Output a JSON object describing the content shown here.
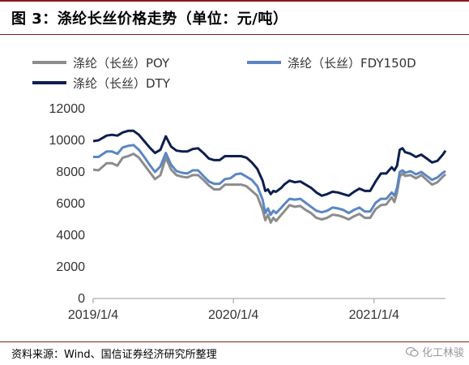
{
  "title": "图 3：涤纶长丝价格走势（单位：元/吨）",
  "source": "资料来源：Wind、国信证券经济研究所整理",
  "watermark": "化工林骏",
  "chart_data": {
    "type": "line",
    "x_ticks": [
      "2019/1/4",
      "2020/1/4",
      "2021/1/4"
    ],
    "y_ticks": [
      0,
      2000,
      4000,
      6000,
      8000,
      10000,
      12000
    ],
    "ylim": [
      0,
      12000
    ],
    "xlim": [
      "2019/1/4",
      "2021/7/9"
    ],
    "grid": false,
    "legend_position": "top",
    "series": [
      {
        "name": "涤纶（长丝）POY",
        "color": "#8c8c8c",
        "points": [
          [
            "2019-01-04",
            8150
          ],
          [
            "2019-01-18",
            8100
          ],
          [
            "2019-02-08",
            8550
          ],
          [
            "2019-02-22",
            8550
          ],
          [
            "2019-03-08",
            8400
          ],
          [
            "2019-03-22",
            8900
          ],
          [
            "2019-04-05",
            9000
          ],
          [
            "2019-04-19",
            9150
          ],
          [
            "2019-05-03",
            8900
          ],
          [
            "2019-05-17",
            8450
          ],
          [
            "2019-05-31",
            8000
          ],
          [
            "2019-06-14",
            7550
          ],
          [
            "2019-06-28",
            7800
          ],
          [
            "2019-07-12",
            8900
          ],
          [
            "2019-07-26",
            8150
          ],
          [
            "2019-08-09",
            7800
          ],
          [
            "2019-08-23",
            7700
          ],
          [
            "2019-09-06",
            7650
          ],
          [
            "2019-09-20",
            7800
          ],
          [
            "2019-10-04",
            7800
          ],
          [
            "2019-10-18",
            7500
          ],
          [
            "2019-11-01",
            7150
          ],
          [
            "2019-11-15",
            6900
          ],
          [
            "2019-11-29",
            6900
          ],
          [
            "2019-12-13",
            7200
          ],
          [
            "2019-12-27",
            7200
          ],
          [
            "2020-01-10",
            7200
          ],
          [
            "2020-01-24",
            7200
          ],
          [
            "2020-02-07",
            7100
          ],
          [
            "2020-02-21",
            6800
          ],
          [
            "2020-03-06",
            6500
          ],
          [
            "2020-03-20",
            5600
          ],
          [
            "2020-03-27",
            4950
          ],
          [
            "2020-04-03",
            5300
          ],
          [
            "2020-04-10",
            4800
          ],
          [
            "2020-04-17",
            5100
          ],
          [
            "2020-04-24",
            4900
          ],
          [
            "2020-05-08",
            5300
          ],
          [
            "2020-05-15",
            5500
          ],
          [
            "2020-05-29",
            5900
          ],
          [
            "2020-06-12",
            5800
          ],
          [
            "2020-06-26",
            5850
          ],
          [
            "2020-07-10",
            5600
          ],
          [
            "2020-07-24",
            5400
          ],
          [
            "2020-08-07",
            5100
          ],
          [
            "2020-08-21",
            5000
          ],
          [
            "2020-09-04",
            5100
          ],
          [
            "2020-09-18",
            5300
          ],
          [
            "2020-10-02",
            5250
          ],
          [
            "2020-10-16",
            5150
          ],
          [
            "2020-10-30",
            5000
          ],
          [
            "2020-11-13",
            5200
          ],
          [
            "2020-11-27",
            5350
          ],
          [
            "2020-12-11",
            5100
          ],
          [
            "2020-12-25",
            5100
          ],
          [
            "2021-01-08",
            5650
          ],
          [
            "2021-01-22",
            5900
          ],
          [
            "2021-02-05",
            5950
          ],
          [
            "2021-02-19",
            6400
          ],
          [
            "2021-02-26",
            6100
          ],
          [
            "2021-03-05",
            6700
          ],
          [
            "2021-03-12",
            7700
          ],
          [
            "2021-03-19",
            7900
          ],
          [
            "2021-03-26",
            7750
          ],
          [
            "2021-04-09",
            7800
          ],
          [
            "2021-04-23",
            7600
          ],
          [
            "2021-05-07",
            7800
          ],
          [
            "2021-05-21",
            7500
          ],
          [
            "2021-06-04",
            7200
          ],
          [
            "2021-06-18",
            7350
          ],
          [
            "2021-07-02",
            7700
          ],
          [
            "2021-07-09",
            7850
          ]
        ]
      },
      {
        "name": "涤纶（长丝）FDY150D",
        "color": "#5b86c4",
        "points": [
          [
            "2019-01-04",
            8950
          ],
          [
            "2019-01-18",
            8950
          ],
          [
            "2019-02-08",
            9300
          ],
          [
            "2019-02-22",
            9300
          ],
          [
            "2019-03-08",
            9150
          ],
          [
            "2019-03-22",
            9550
          ],
          [
            "2019-04-05",
            9650
          ],
          [
            "2019-04-19",
            9700
          ],
          [
            "2019-05-03",
            9400
          ],
          [
            "2019-05-17",
            8950
          ],
          [
            "2019-05-31",
            8450
          ],
          [
            "2019-06-14",
            8000
          ],
          [
            "2019-06-28",
            8350
          ],
          [
            "2019-07-12",
            9200
          ],
          [
            "2019-07-26",
            8450
          ],
          [
            "2019-08-09",
            8050
          ],
          [
            "2019-08-23",
            7950
          ],
          [
            "2019-09-06",
            7900
          ],
          [
            "2019-09-20",
            8100
          ],
          [
            "2019-10-04",
            8100
          ],
          [
            "2019-10-18",
            7750
          ],
          [
            "2019-11-01",
            7400
          ],
          [
            "2019-11-15",
            7250
          ],
          [
            "2019-11-29",
            7250
          ],
          [
            "2019-12-13",
            7550
          ],
          [
            "2019-12-27",
            7600
          ],
          [
            "2020-01-10",
            7850
          ],
          [
            "2020-01-24",
            7900
          ],
          [
            "2020-02-07",
            7700
          ],
          [
            "2020-02-21",
            7500
          ],
          [
            "2020-03-06",
            7100
          ],
          [
            "2020-03-20",
            6250
          ],
          [
            "2020-03-27",
            5400
          ],
          [
            "2020-04-03",
            5700
          ],
          [
            "2020-04-10",
            5300
          ],
          [
            "2020-04-17",
            5550
          ],
          [
            "2020-04-24",
            5400
          ],
          [
            "2020-05-08",
            5750
          ],
          [
            "2020-05-15",
            5950
          ],
          [
            "2020-05-29",
            6300
          ],
          [
            "2020-06-12",
            6250
          ],
          [
            "2020-06-26",
            6300
          ],
          [
            "2020-07-10",
            6050
          ],
          [
            "2020-07-24",
            5800
          ],
          [
            "2020-08-07",
            5550
          ],
          [
            "2020-08-21",
            5450
          ],
          [
            "2020-09-04",
            5550
          ],
          [
            "2020-09-18",
            5750
          ],
          [
            "2020-10-02",
            5700
          ],
          [
            "2020-10-16",
            5600
          ],
          [
            "2020-10-30",
            5400
          ],
          [
            "2020-11-13",
            5600
          ],
          [
            "2020-11-27",
            5750
          ],
          [
            "2020-12-11",
            5500
          ],
          [
            "2020-12-25",
            5500
          ],
          [
            "2021-01-08",
            6050
          ],
          [
            "2021-01-22",
            6300
          ],
          [
            "2021-02-05",
            6300
          ],
          [
            "2021-02-19",
            6700
          ],
          [
            "2021-02-26",
            6500
          ],
          [
            "2021-03-05",
            7000
          ],
          [
            "2021-03-12",
            8000
          ],
          [
            "2021-03-19",
            8100
          ],
          [
            "2021-03-26",
            7950
          ],
          [
            "2021-04-09",
            8050
          ],
          [
            "2021-04-23",
            7850
          ],
          [
            "2021-05-07",
            8000
          ],
          [
            "2021-05-21",
            7750
          ],
          [
            "2021-06-04",
            7500
          ],
          [
            "2021-06-18",
            7650
          ],
          [
            "2021-07-02",
            7950
          ],
          [
            "2021-07-09",
            8050
          ]
        ]
      },
      {
        "name": "涤纶（长丝）DTY",
        "color": "#0d1f4f",
        "points": [
          [
            "2019-01-04",
            9950
          ],
          [
            "2019-01-18",
            10000
          ],
          [
            "2019-02-08",
            10300
          ],
          [
            "2019-02-22",
            10350
          ],
          [
            "2019-03-08",
            10300
          ],
          [
            "2019-03-22",
            10500
          ],
          [
            "2019-04-05",
            10600
          ],
          [
            "2019-04-19",
            10600
          ],
          [
            "2019-05-03",
            10350
          ],
          [
            "2019-05-17",
            9950
          ],
          [
            "2019-05-31",
            9550
          ],
          [
            "2019-06-14",
            9200
          ],
          [
            "2019-06-28",
            9400
          ],
          [
            "2019-07-12",
            10250
          ],
          [
            "2019-07-26",
            9600
          ],
          [
            "2019-08-09",
            9350
          ],
          [
            "2019-08-23",
            9300
          ],
          [
            "2019-09-06",
            9300
          ],
          [
            "2019-09-20",
            9450
          ],
          [
            "2019-10-04",
            9500
          ],
          [
            "2019-10-18",
            9200
          ],
          [
            "2019-11-01",
            8850
          ],
          [
            "2019-11-15",
            8750
          ],
          [
            "2019-11-29",
            8750
          ],
          [
            "2019-12-13",
            9000
          ],
          [
            "2019-12-27",
            9000
          ],
          [
            "2020-01-10",
            9000
          ],
          [
            "2020-01-24",
            9000
          ],
          [
            "2020-02-07",
            8900
          ],
          [
            "2020-02-21",
            8600
          ],
          [
            "2020-03-06",
            8200
          ],
          [
            "2020-03-20",
            7450
          ],
          [
            "2020-03-27",
            6800
          ],
          [
            "2020-04-03",
            6900
          ],
          [
            "2020-04-10",
            6600
          ],
          [
            "2020-04-17",
            6800
          ],
          [
            "2020-04-24",
            6750
          ],
          [
            "2020-05-08",
            7000
          ],
          [
            "2020-05-15",
            7200
          ],
          [
            "2020-05-29",
            7450
          ],
          [
            "2020-06-12",
            7350
          ],
          [
            "2020-06-26",
            7400
          ],
          [
            "2020-07-10",
            7200
          ],
          [
            "2020-07-24",
            7000
          ],
          [
            "2020-08-07",
            6700
          ],
          [
            "2020-08-21",
            6500
          ],
          [
            "2020-09-04",
            6600
          ],
          [
            "2020-09-18",
            6750
          ],
          [
            "2020-10-02",
            6700
          ],
          [
            "2020-10-16",
            6600
          ],
          [
            "2020-10-30",
            6500
          ],
          [
            "2020-11-13",
            6750
          ],
          [
            "2020-11-27",
            6950
          ],
          [
            "2020-12-11",
            6800
          ],
          [
            "2020-12-25",
            6800
          ],
          [
            "2021-01-08",
            7400
          ],
          [
            "2021-01-22",
            7900
          ],
          [
            "2021-02-05",
            7900
          ],
          [
            "2021-02-19",
            8300
          ],
          [
            "2021-02-26",
            8100
          ],
          [
            "2021-03-05",
            8400
          ],
          [
            "2021-03-12",
            9400
          ],
          [
            "2021-03-19",
            9500
          ],
          [
            "2021-03-26",
            9250
          ],
          [
            "2021-04-09",
            9150
          ],
          [
            "2021-04-23",
            8950
          ],
          [
            "2021-05-07",
            9100
          ],
          [
            "2021-05-21",
            8850
          ],
          [
            "2021-06-04",
            8600
          ],
          [
            "2021-06-18",
            8700
          ],
          [
            "2021-07-02",
            9100
          ],
          [
            "2021-07-09",
            9350
          ]
        ]
      }
    ]
  }
}
